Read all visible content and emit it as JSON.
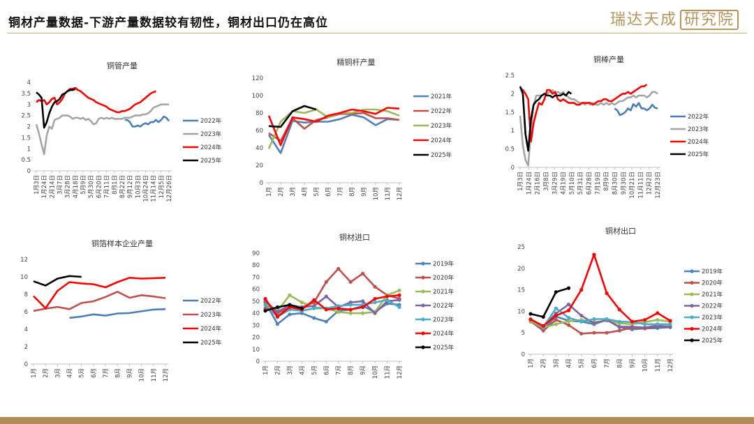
{
  "header": {
    "title": "铜材产量数据-下游产量数据较有韧性，铜材出口仍在高位",
    "logo_text": "瑞达天成",
    "logo_box_text": "研究院"
  },
  "colors": {
    "c2019": "#4f81bd",
    "c2020": "#c0504d",
    "c2021": "#9bbb59",
    "c2022": "#8064a2",
    "c2023": "#4bacc6",
    "c2024": "#ff0000",
    "c2025": "#000000",
    "blue": "#4a7ebb",
    "red_muted": "#c0504d",
    "grey": "#a5a5a5",
    "red": "#ff0000",
    "black": "#000000",
    "accent": "#b08d57"
  },
  "chart_data": [
    {
      "id": "pipe",
      "type": "line",
      "title": "铜管产量",
      "ylim": [
        0,
        4
      ],
      "yticks": [
        "0",
        "0.5",
        "1",
        "1.5",
        "2",
        "2.5",
        "3",
        "3.5",
        "4"
      ],
      "x_tick_labels": [
        "1月3日",
        "1月24日",
        "2月14日",
        "3月7日",
        "3月28日",
        "4月18日",
        "5月9日",
        "5月30日",
        "6月20日",
        "7月11日",
        "8月1日",
        "8月22日",
        "9月12日",
        "10月3日",
        "10月24日",
        "11月14日",
        "12月5日",
        "12月26日"
      ],
      "n": 52,
      "series": [
        {
          "name": "2022年",
          "color": "#4a7ebb",
          "values": [
            null,
            null,
            null,
            null,
            null,
            null,
            null,
            null,
            null,
            null,
            null,
            null,
            null,
            null,
            null,
            null,
            null,
            null,
            null,
            null,
            null,
            null,
            null,
            null,
            null,
            null,
            null,
            null,
            null,
            null,
            null,
            null,
            null,
            null,
            2.3,
            2.3,
            2.2,
            2.0,
            2.0,
            2.05,
            2.0,
            2.1,
            2.15,
            2.1,
            2.2,
            2.2,
            2.3,
            2.2,
            2.3,
            2.45,
            2.4,
            2.25
          ]
        },
        {
          "name": "2023年",
          "color": "#a5a5a5",
          "values": [
            2.1,
            1.7,
            1.2,
            0.75,
            1.6,
            2.0,
            1.9,
            2.3,
            2.35,
            2.4,
            2.5,
            2.5,
            2.5,
            2.45,
            2.35,
            2.4,
            2.4,
            2.35,
            2.4,
            2.3,
            2.35,
            2.25,
            2.1,
            2.15,
            2.35,
            2.4,
            2.35,
            2.4,
            2.35,
            2.4,
            2.35,
            2.35,
            2.35,
            2.35,
            2.4,
            2.4,
            2.4,
            2.45,
            2.5,
            2.5,
            2.5,
            2.55,
            2.55,
            2.6,
            2.7,
            2.85,
            2.9,
            2.95,
            3.0,
            3.0,
            3.0,
            3.0
          ]
        },
        {
          "name": "2024年",
          "color": "#ff0000",
          "values": [
            3.1,
            3.2,
            3.15,
            3.2,
            3.0,
            3.1,
            3.25,
            3.3,
            3.0,
            3.1,
            3.25,
            3.5,
            3.6,
            3.7,
            3.7,
            3.75,
            3.65,
            3.6,
            3.5,
            3.4,
            3.3,
            3.25,
            3.2,
            3.1,
            3.05,
            3.0,
            2.95,
            2.9,
            2.8,
            2.75,
            2.7,
            2.65,
            2.65,
            2.7,
            2.7,
            2.75,
            2.8,
            2.9,
            3.0,
            3.05,
            3.1,
            3.2,
            3.3,
            3.4,
            3.5,
            3.55,
            3.6,
            null,
            null,
            null,
            null,
            null
          ]
        },
        {
          "name": "2025年",
          "color": "#000000",
          "values": [
            3.55,
            3.45,
            3.3,
            1.95,
            2.2,
            2.6,
            2.9,
            3.1,
            3.15,
            3.25,
            3.45,
            3.5,
            3.6,
            3.65,
            3.65,
            3.7,
            null,
            null,
            null,
            null,
            null,
            null,
            null,
            null,
            null,
            null,
            null,
            null,
            null,
            null,
            null,
            null,
            null,
            null,
            null,
            null,
            null,
            null,
            null,
            null,
            null,
            null,
            null,
            null,
            null,
            null,
            null,
            null,
            null,
            null,
            null,
            null
          ]
        }
      ]
    },
    {
      "id": "rod",
      "type": "line",
      "title": "精铜杆产量",
      "ylim": [
        0,
        120
      ],
      "yticks": [
        "0",
        "20",
        "40",
        "60",
        "80",
        "100",
        "120"
      ],
      "x_tick_labels": [
        "1月",
        "2月",
        "3月",
        "4月",
        "5月",
        "6月",
        "7月",
        "8月",
        "9月",
        "10月",
        "11月",
        "12月"
      ],
      "n": 12,
      "series": [
        {
          "name": "2021年",
          "color": "#4f81bd",
          "values": [
            55,
            34,
            71,
            69,
            70,
            70,
            73,
            78,
            75,
            66,
            73,
            72
          ]
        },
        {
          "name": "2022年",
          "color": "#c0504d",
          "values": [
            57,
            48,
            74,
            62,
            72,
            75,
            79,
            79,
            80,
            74,
            74,
            72
          ]
        },
        {
          "name": "2023年",
          "color": "#9bbb59",
          "values": [
            39,
            70,
            82,
            80,
            84,
            75,
            80,
            80,
            84,
            84,
            82,
            77
          ]
        },
        {
          "name": "2024年",
          "color": "#ff0000",
          "values": [
            77,
            43,
            75,
            73,
            70,
            77,
            80,
            84,
            82,
            79,
            86,
            85
          ]
        },
        {
          "name": "2025年",
          "color": "#000000",
          "values": [
            65,
            64,
            82,
            88,
            84,
            null,
            null,
            null,
            null,
            null,
            null,
            null
          ]
        }
      ]
    },
    {
      "id": "bar",
      "type": "line",
      "title": "铜棒产量",
      "ylim": [
        0,
        2.5
      ],
      "yticks": [
        "0",
        "0.5",
        "1",
        "1.5",
        "2",
        "2.5"
      ],
      "x_tick_labels": [
        "1月3日",
        "1月24日",
        "2月16日",
        "3月8日",
        "3月29日",
        "4月19日",
        "5月10日",
        "5月31日",
        "6月28日",
        "7月19日",
        "8月9日",
        "8月30日",
        "9月30日",
        "10月21日",
        "11月11日",
        "12月2日",
        "12月23日"
      ],
      "n": 52,
      "series": [
        {
          "name": "2022年",
          "color": "#4a7ebb",
          "values": [
            null,
            null,
            null,
            null,
            null,
            null,
            null,
            null,
            null,
            null,
            null,
            null,
            null,
            null,
            null,
            null,
            null,
            null,
            null,
            null,
            null,
            null,
            null,
            null,
            null,
            null,
            null,
            null,
            null,
            null,
            null,
            null,
            null,
            null,
            null,
            1.6,
            1.55,
            1.42,
            1.45,
            1.5,
            1.6,
            1.55,
            1.72,
            1.65,
            1.75,
            1.6,
            1.6,
            1.55,
            1.6,
            1.7,
            1.62,
            1.6
          ]
        },
        {
          "name": "2023年",
          "color": "#a5a5a5",
          "values": [
            1.4,
            0.6,
            0.2,
            0.05,
            1.0,
            1.7,
            1.95,
            1.95,
            1.95,
            2.0,
            2.0,
            2.05,
            2.1,
            2.0,
            2.05,
            2.0,
            2.05,
            1.95,
            1.9,
            1.85,
            1.85,
            1.8,
            1.75,
            1.75,
            1.7,
            1.75,
            1.7,
            1.75,
            1.7,
            1.7,
            1.75,
            1.7,
            1.75,
            1.7,
            1.75,
            1.7,
            1.75,
            1.8,
            1.8,
            1.85,
            1.9,
            1.9,
            1.95,
            1.9,
            1.95,
            1.95,
            1.95,
            1.9,
            1.95,
            2.05,
            2.05,
            2.0
          ]
        },
        {
          "name": "2024年",
          "color": "#ff0000",
          "values": [
            2.15,
            2.1,
            2.0,
            1.85,
            0.7,
            1.2,
            1.5,
            1.75,
            1.7,
            1.85,
            2.1,
            2.1,
            2.0,
            2.05,
            1.85,
            1.8,
            1.85,
            1.8,
            1.75,
            1.75,
            1.75,
            1.7,
            1.7,
            1.75,
            1.75,
            1.75,
            1.75,
            1.7,
            1.75,
            1.8,
            1.8,
            1.85,
            1.85,
            1.8,
            1.8,
            1.85,
            1.9,
            1.95,
            2.0,
            2.0,
            2.05,
            2.0,
            2.05,
            2.1,
            2.15,
            2.2,
            2.2,
            2.25,
            null,
            null,
            null,
            null
          ]
        },
        {
          "name": "2025年",
          "color": "#000000",
          "values": [
            2.2,
            2.0,
            0.9,
            0.45,
            1.3,
            1.7,
            1.8,
            1.85,
            1.95,
            2.0,
            1.95,
            1.95,
            1.9,
            1.95,
            1.95,
            1.95,
            2.0,
            1.95,
            2.05,
            2.0,
            null,
            null,
            null,
            null,
            null,
            null,
            null,
            null,
            null,
            null,
            null,
            null,
            null,
            null,
            null,
            null,
            null,
            null,
            null,
            null,
            null,
            null,
            null,
            null,
            null,
            null,
            null,
            null,
            null,
            null,
            null,
            null
          ]
        }
      ]
    },
    {
      "id": "foil",
      "type": "line",
      "title": "铜箔样本企业产量",
      "ylim": [
        0,
        12
      ],
      "yticks": [
        "0",
        "2",
        "4",
        "6",
        "8",
        "10",
        "12"
      ],
      "x_tick_labels": [
        "1月",
        "2月",
        "3月",
        "4月",
        "5月",
        "6月",
        "7月",
        "8月",
        "9月",
        "10月",
        "11月",
        "12月"
      ],
      "n": 12,
      "series": [
        {
          "name": "2022年",
          "color": "#4a7ebb",
          "values": [
            null,
            null,
            null,
            5.3,
            5.45,
            5.7,
            5.55,
            5.8,
            5.85,
            6.05,
            6.25,
            6.3
          ]
        },
        {
          "name": "2023年",
          "color": "#c0504d",
          "values": [
            6.1,
            6.35,
            6.55,
            6.3,
            7.0,
            7.2,
            7.7,
            8.3,
            7.6,
            7.9,
            7.75,
            7.55
          ]
        },
        {
          "name": "2024年",
          "color": "#ff0000",
          "values": [
            7.8,
            6.4,
            8.4,
            9.4,
            9.25,
            9.15,
            8.8,
            9.4,
            9.9,
            9.8,
            9.85,
            9.9
          ]
        },
        {
          "name": "2025年",
          "color": "#000000",
          "values": [
            9.5,
            9.0,
            9.8,
            10.1,
            10.0,
            null,
            null,
            null,
            null,
            null,
            null,
            null
          ]
        }
      ]
    },
    {
      "id": "import",
      "type": "line",
      "title": "铜材进口",
      "ylim": [
        0,
        90
      ],
      "yticks": [
        "0",
        "10",
        "20",
        "30",
        "40",
        "50",
        "60",
        "70",
        "80",
        "90"
      ],
      "x_tick_labels": [
        "1月",
        "2月",
        "3月",
        "4月",
        "5月",
        "6月",
        "7月",
        "8月",
        "9月",
        "10月",
        "11月",
        "12月"
      ],
      "n": 12,
      "series": [
        {
          "name": "2019年",
          "color": "#4f81bd",
          "values": [
            49,
            31,
            39,
            40,
            36,
            33,
            42,
            43,
            46,
            41,
            48,
            47
          ]
        },
        {
          "name": "2020年",
          "color": "#c0504d",
          "values": [
            44,
            40,
            45,
            45,
            49,
            66,
            77,
            66,
            73,
            62,
            55,
            52
          ]
        },
        {
          "name": "2021年",
          "color": "#9bbb59",
          "values": [
            47,
            42,
            55,
            49,
            45,
            44,
            41,
            40,
            40,
            41,
            55,
            59
          ]
        },
        {
          "name": "2022年",
          "color": "#8064a2",
          "values": [
            50,
            41,
            47,
            45,
            46,
            54,
            45,
            49,
            50,
            40,
            50,
            51
          ]
        },
        {
          "name": "2023年",
          "color": "#4bacc6",
          "values": [
            47,
            37,
            43,
            42,
            44,
            44,
            46,
            47,
            47,
            49,
            51,
            45
          ]
        },
        {
          "name": "2024年",
          "color": "#ff0000",
          "values": [
            52,
            37,
            45,
            43,
            51,
            43,
            44,
            43,
            45,
            52,
            54,
            55
          ]
        },
        {
          "name": "2025年",
          "color": "#000000",
          "values": [
            42,
            45,
            47,
            44,
            null,
            null,
            null,
            null,
            null,
            null,
            null,
            null
          ]
        }
      ]
    },
    {
      "id": "export",
      "type": "line",
      "title": "铜材出口",
      "ylim": [
        0,
        25
      ],
      "yticks": [
        "0",
        "5",
        "10",
        "15",
        "20",
        "25"
      ],
      "x_tick_labels": [
        "1月",
        "2月",
        "3月",
        "4月",
        "5月",
        "6月",
        "7月",
        "8月",
        "9月",
        "10月",
        "11月",
        "12月"
      ],
      "n": 12,
      "series": [
        {
          "name": "2019年",
          "color": "#4f81bd",
          "values": [
            7.6,
            5.8,
            8.8,
            7.8,
            7.6,
            7.0,
            8.0,
            6.3,
            5.8,
            6.0,
            6.1,
            6.3
          ]
        },
        {
          "name": "2020年",
          "color": "#c0504d",
          "values": [
            7.7,
            5.5,
            8.0,
            6.8,
            4.8,
            5.0,
            5.0,
            5.5,
            6.2,
            6.0,
            6.5,
            6.5
          ]
        },
        {
          "name": "2021年",
          "color": "#9bbb59",
          "values": [
            7.7,
            6.2,
            7.0,
            7.7,
            8.0,
            7.5,
            7.8,
            7.2,
            7.0,
            7.5,
            8.0,
            7.6
          ]
        },
        {
          "name": "2022年",
          "color": "#8064a2",
          "values": [
            8.2,
            6.5,
            9.5,
            11.6,
            9.0,
            7.2,
            8.0,
            6.4,
            6.4,
            6.2,
            6.7,
            6.3
          ]
        },
        {
          "name": "2023年",
          "color": "#4bacc6",
          "values": [
            8.2,
            6.3,
            10.7,
            8.5,
            7.6,
            8.2,
            8.2,
            7.6,
            7.5,
            7.0,
            7.0,
            7.0
          ]
        },
        {
          "name": "2024年",
          "color": "#ff0000",
          "values": [
            8.1,
            6.6,
            9.0,
            10.2,
            15.0,
            23.2,
            14.2,
            10.4,
            7.6,
            8.0,
            9.6,
            7.8
          ]
        },
        {
          "name": "2025年",
          "color": "#000000",
          "values": [
            9.4,
            8.7,
            14.5,
            15.4,
            null,
            null,
            null,
            null,
            null,
            null,
            null,
            null
          ]
        }
      ]
    }
  ]
}
